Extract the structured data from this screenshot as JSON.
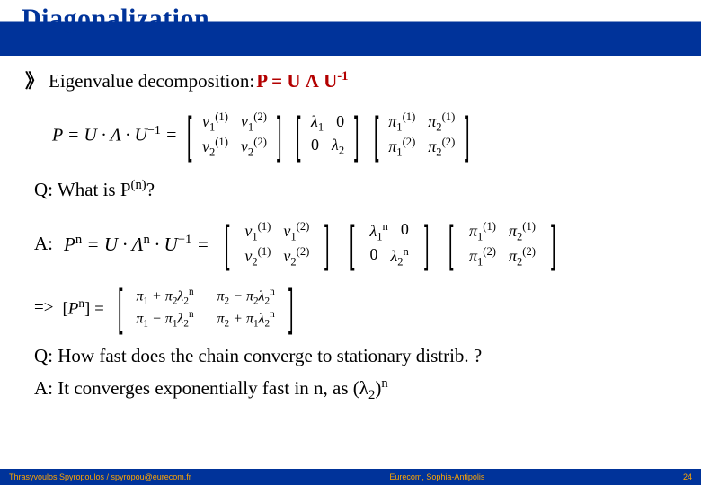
{
  "title": "Diagonalization",
  "bullet": {
    "text": "Eigenvalue decomposition: ",
    "formula_lhs": "P = U ",
    "lambda": "Λ",
    "formula_rhs": " U",
    "exp": "-1"
  },
  "eq1": {
    "lhs": "P = U · Λ · U",
    "exp": "−1",
    "eq": " = ",
    "v11": "v",
    "v11s": "1",
    "v11e": "(1)",
    "v12": "v",
    "v12s": "1",
    "v12e": "(2)",
    "v21": "v",
    "v21s": "2",
    "v21e": "(1)",
    "v22": "v",
    "v22s": "2",
    "v22e": "(2)",
    "l1": "λ",
    "l1s": "1",
    "zero": "0",
    "l2": "λ",
    "l2s": "2",
    "p11": "π",
    "p11s": "1",
    "p11e": "(1)",
    "p12": "π",
    "p12s": "2",
    "p12e": "(1)",
    "p21": "π",
    "p21s": "1",
    "p21e": "(2)",
    "p22": "π",
    "p22s": "2",
    "p22e": "(2)"
  },
  "q1": {
    "label": "Q: What is P",
    "exp": "(n)",
    "tail": "?"
  },
  "a1": {
    "label": "A:",
    "lhs": "P",
    "lhse": "n",
    "mid": " = U · Λ",
    "mide": "n",
    "mid2": " · U",
    "mid2e": "−1",
    "eq": " = ",
    "ln": "n"
  },
  "arrow": {
    "sym": "=>",
    "lhs": "[P",
    "lhse": "n",
    "lhs2": "] = ",
    "r11a": "π",
    "r11as": "1",
    "r11plus": " + π",
    "r11bs": "2",
    "r11l": "λ",
    "r11ls": "2",
    "r11le": "n",
    "r12a": "π",
    "r12as": "2",
    "r12minus": " − π",
    "r12bs": "2",
    "r12l": "λ",
    "r12ls": "2",
    "r12le": "n",
    "r21a": "π",
    "r21as": "1",
    "r21minus": " − π",
    "r21bs": "1",
    "r21l": "λ",
    "r21ls": "2",
    "r21le": "n",
    "r22a": "π",
    "r22as": "2",
    "r22plus": " + π",
    "r22bs": "1",
    "r22l": "λ",
    "r22ls": "2",
    "r22le": "n"
  },
  "q2": "Q: How fast does the chain converge to stationary distrib. ?",
  "a2": {
    "pre": "A: It converges exponentially fast in n, as (",
    "lam": "λ",
    "sub": "2",
    "post": ")",
    "exp": "n"
  },
  "footer": {
    "left": "Thrasyvoulos Spyropoulos / spyropou@eurecom.fr",
    "mid": "Eurecom, Sophia-Antipolis",
    "page": "24"
  }
}
